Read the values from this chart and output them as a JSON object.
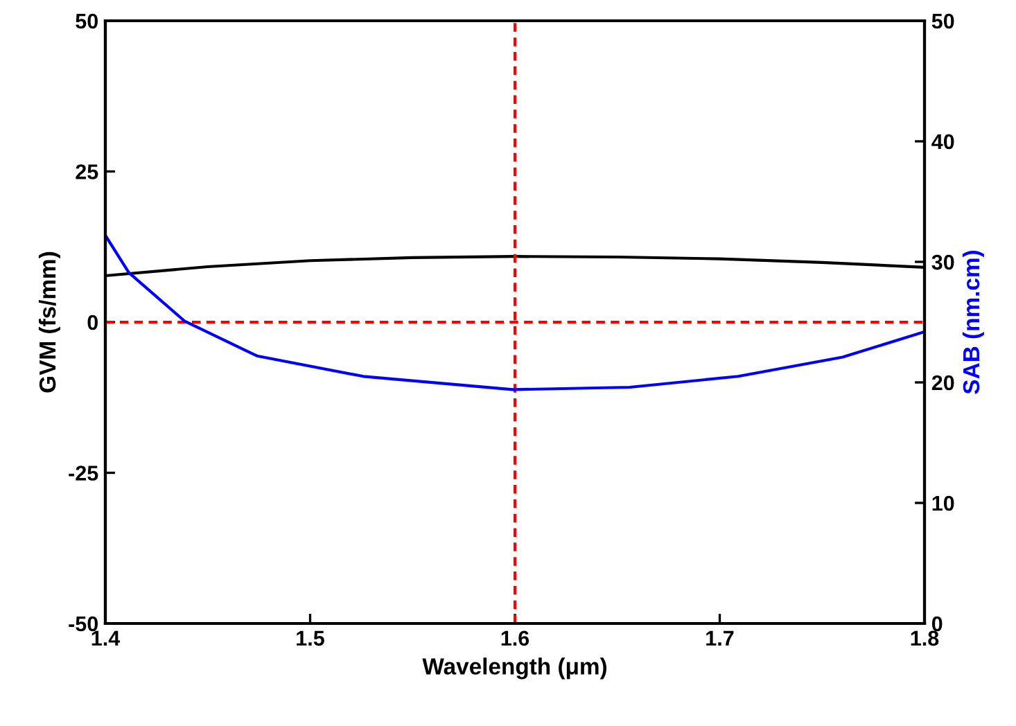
{
  "chart_data": {
    "type": "line",
    "xlabel": "Wavelength (μm)",
    "ylabel": "GVM (fs/mm)",
    "y2label": "SAB (nm.cm)",
    "xlim": [
      1.4,
      1.8
    ],
    "xticks": [
      1.4,
      1.5,
      1.6,
      1.7,
      1.8
    ],
    "ylim": [
      -50,
      50
    ],
    "yticks": [
      -50,
      -25,
      0,
      25,
      50
    ],
    "y2lim": [
      0,
      50
    ],
    "y2ticks": [
      0,
      10,
      20,
      30,
      40,
      50
    ],
    "grid": false,
    "legend": false,
    "line_style": "solid",
    "marker": "none",
    "series": [
      {
        "color": "#000000",
        "x": [
          1.4,
          1.45,
          1.5,
          1.55,
          1.6,
          1.65,
          1.7,
          1.75,
          1.8
        ],
        "values": [
          7.7,
          9.2,
          10.2,
          10.7,
          10.9,
          10.8,
          10.5,
          9.9,
          9.1
        ]
      },
      {
        "color": "#0000ff",
        "axis": "y2",
        "x": [
          1.4,
          1.4115,
          1.4386,
          1.474,
          1.526,
          1.599,
          1.656,
          1.709,
          1.76,
          1.8
        ],
        "values": [
          32.2,
          29.1,
          25.1,
          22.2,
          20.5,
          19.4,
          19.6,
          20.5,
          22.1,
          24.2
        ]
      }
    ],
    "ref_lines": [
      {
        "axis": "x",
        "value": 1.6,
        "color": "#ff0000",
        "line_style": "dashed"
      },
      {
        "axis": "y",
        "value": 0,
        "color": "#ff0000",
        "line_style": "dashed"
      }
    ]
  }
}
